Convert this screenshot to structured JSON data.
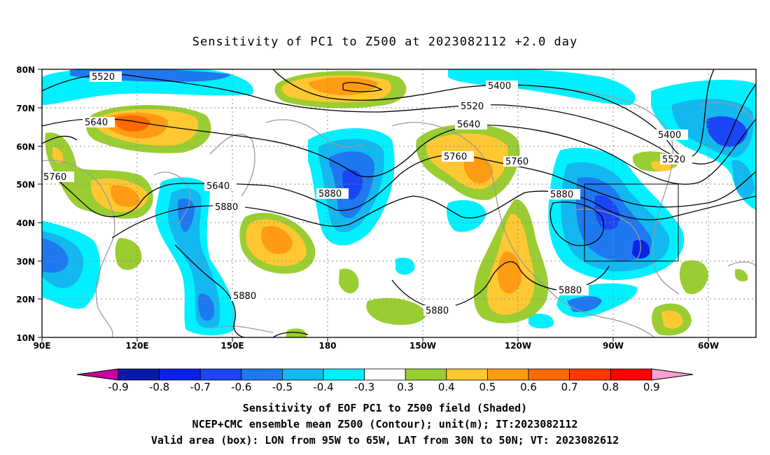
{
  "title": "Sensitivity of PC1 to Z500 at 2023082112 +2.0 day",
  "lat_ticks": [
    "80N",
    "70N",
    "60N",
    "50N",
    "40N",
    "30N",
    "20N",
    "10N"
  ],
  "lon_ticks": [
    "90E",
    "120E",
    "150E",
    "180",
    "150W",
    "120W",
    "90W",
    "60W"
  ],
  "contour_labels": [
    "5520",
    "5400",
    "5520",
    "5640",
    "5400",
    "5640",
    "5520",
    "5760",
    "5760",
    "5760",
    "5640",
    "5880",
    "5880",
    "5880",
    "5880",
    "5880",
    "5880"
  ],
  "colorbar": {
    "ticks": [
      "-0.9",
      "-0.8",
      "-0.7",
      "-0.6",
      "-0.5",
      "-0.4",
      "-0.3",
      "0.3",
      "0.4",
      "0.5",
      "0.6",
      "0.7",
      "0.8",
      "0.9"
    ],
    "colors": [
      "#0a1aa8",
      "#0a22e6",
      "#1a46f5",
      "#1e78f0",
      "#13b8f0",
      "#00f0ff",
      "#ffffff",
      "#9acd32",
      "#ffc832",
      "#ff9c14",
      "#ff6a00",
      "#ff3800",
      "#ff0000"
    ],
    "under_color": "#c800a0",
    "over_color": "#ff9ed2"
  },
  "captions": [
    "Sensitivity of EOF PC1 to Z500 field (Shaded)",
    "NCEP+CMC ensemble mean Z500 (Contour); unit(m); IT:2023082112",
    "Valid area (box): LON from 95W to 65W, LAT from 30N to 50N; VT: 2023082612"
  ],
  "valid_box": {
    "lon_min": "95W",
    "lon_max": "65W",
    "lat_min": "30N",
    "lat_max": "50N"
  }
}
